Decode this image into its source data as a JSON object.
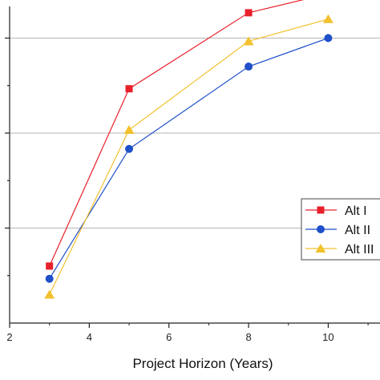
{
  "chart_data": {
    "type": "line",
    "xlabel": "Project Horizon (Years)",
    "ylabel": "",
    "xlim": [
      2,
      11.3
    ],
    "ylim": [
      0,
      100
    ],
    "x_ticks": [
      "2",
      "4",
      "6",
      "8",
      "10"
    ],
    "grid_y": [
      30,
      60,
      90
    ],
    "legend_position": "right",
    "series": [
      {
        "name": "Alt I",
        "color": "#e8202a",
        "marker": "square",
        "x": [
          3,
          5,
          8,
          10
        ],
        "y": [
          18,
          74,
          98,
          104
        ]
      },
      {
        "name": "Alt II",
        "color": "#1f4fc9",
        "marker": "circle",
        "x": [
          3,
          5,
          8,
          10
        ],
        "y": [
          14,
          55,
          81,
          90
        ]
      },
      {
        "name": "Alt III",
        "color": "#f2c12e",
        "marker": "triangle",
        "x": [
          3,
          5,
          8,
          10
        ],
        "y": [
          9,
          61,
          89,
          96
        ]
      }
    ]
  }
}
